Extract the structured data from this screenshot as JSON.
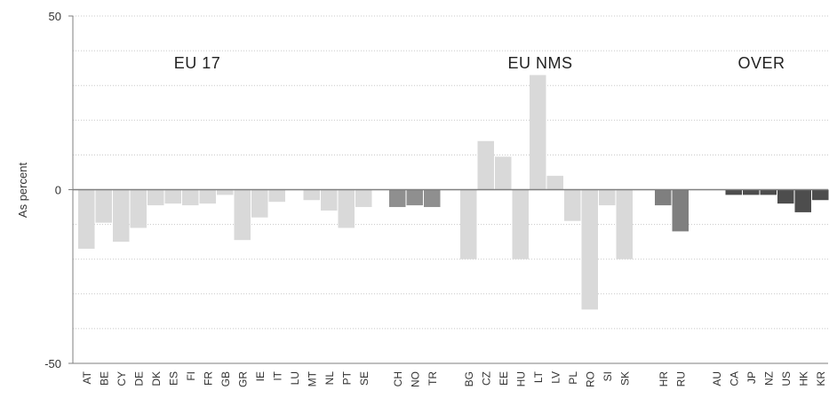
{
  "chart_data": {
    "type": "bar",
    "ylabel": "As percent",
    "ylim": [
      -50,
      50
    ],
    "yticks": [
      "-50",
      "0",
      "50"
    ],
    "grid": "horizontal dotted lines every 10",
    "groups": [
      {
        "label": "EU 17",
        "color": "#d9d9d9",
        "categories": [
          "AT",
          "BE",
          "CY",
          "DE",
          "DK",
          "ES",
          "FI",
          "FR",
          "GB",
          "GR",
          "IE",
          "IT",
          "LU",
          "MT",
          "NL",
          "PT",
          "SE"
        ],
        "values": [
          -17,
          -9.5,
          -15,
          -11,
          -4.5,
          -4,
          -4.5,
          -4,
          -1.5,
          -14.5,
          -8,
          -3.5,
          0,
          -3,
          -6,
          -11,
          -5
        ]
      },
      {
        "label": "",
        "color": "#8f8f8f",
        "categories": [
          "CH",
          "NO",
          "TR"
        ],
        "values": [
          -5,
          -4.5,
          -5
        ]
      },
      {
        "label": "EU NMS",
        "color": "#d9d9d9",
        "categories": [
          "BG",
          "CZ",
          "EE",
          "HU",
          "LT",
          "LV",
          "PL",
          "RO",
          "SI",
          "SK"
        ],
        "values": [
          -20,
          14,
          9.5,
          -20,
          33,
          4,
          -9,
          -34.5,
          -4.5,
          -20
        ]
      },
      {
        "label": "",
        "color": "#7f7f7f",
        "categories": [
          "HR",
          "RU"
        ],
        "values": [
          -4.5,
          -12
        ]
      },
      {
        "label": "OVER",
        "color": "#4d4d4d",
        "categories": [
          "AU",
          "CA",
          "JP",
          "NZ",
          "US",
          "HK",
          "KR"
        ],
        "values": [
          0,
          -1.5,
          -1.5,
          -1.5,
          -4,
          -6.5,
          -3
        ]
      }
    ],
    "legend": "none"
  }
}
